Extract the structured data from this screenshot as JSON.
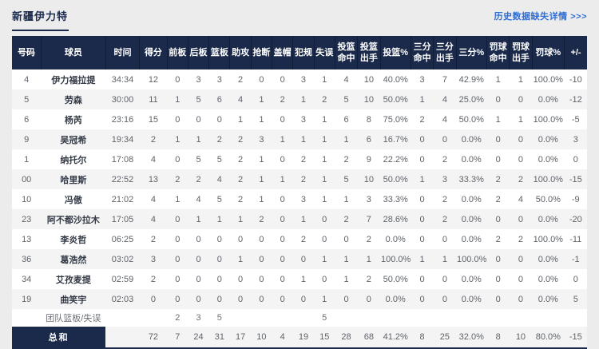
{
  "header": {
    "title": "新疆伊力特",
    "history_link": "历史数据缺失详情 >>>"
  },
  "colors": {
    "navy": "#1b2a4a",
    "link_blue": "#2e6ed5",
    "stripe": "#f4f4f5",
    "body_text": "#5f6368"
  },
  "table": {
    "columns": [
      {
        "id": "number",
        "label": "号码"
      },
      {
        "id": "player",
        "label": "球员"
      },
      {
        "id": "time",
        "label": "时间"
      },
      {
        "id": "points",
        "label": "得分"
      },
      {
        "id": "oreb",
        "label": "前板"
      },
      {
        "id": "dreb",
        "label": "后板"
      },
      {
        "id": "reb",
        "label": "篮板"
      },
      {
        "id": "ast",
        "label": "助攻"
      },
      {
        "id": "stl",
        "label": "抢断"
      },
      {
        "id": "blk",
        "label": "盖帽"
      },
      {
        "id": "fouls",
        "label": "犯规"
      },
      {
        "id": "tov",
        "label": "失误"
      },
      {
        "id": "fgm",
        "label": "投篮\n命中"
      },
      {
        "id": "fga",
        "label": "投篮\n出手"
      },
      {
        "id": "fgpct",
        "label": "投篮%"
      },
      {
        "id": "tpm",
        "label": "三分\n命中"
      },
      {
        "id": "tpa",
        "label": "三分\n出手"
      },
      {
        "id": "tppct",
        "label": "三分%"
      },
      {
        "id": "ftm",
        "label": "罚球\n命中"
      },
      {
        "id": "fta",
        "label": "罚球\n出手"
      },
      {
        "id": "ftpct",
        "label": "罚球%"
      },
      {
        "id": "plusminus",
        "label": "+/-"
      }
    ],
    "rows": [
      [
        "4",
        "伊力福拉提",
        "34:34",
        "12",
        "0",
        "3",
        "3",
        "2",
        "0",
        "0",
        "3",
        "1",
        "4",
        "10",
        "40.0%",
        "3",
        "7",
        "42.9%",
        "1",
        "1",
        "100.0%",
        "-10"
      ],
      [
        "5",
        "劳森",
        "30:00",
        "11",
        "1",
        "5",
        "6",
        "4",
        "1",
        "2",
        "1",
        "2",
        "5",
        "10",
        "50.0%",
        "1",
        "4",
        "25.0%",
        "0",
        "0",
        "0.0%",
        "-12"
      ],
      [
        "6",
        "杨芮",
        "23:16",
        "15",
        "0",
        "0",
        "0",
        "1",
        "1",
        "0",
        "3",
        "1",
        "6",
        "8",
        "75.0%",
        "2",
        "4",
        "50.0%",
        "1",
        "1",
        "100.0%",
        "-5"
      ],
      [
        "9",
        "吴冠希",
        "19:34",
        "2",
        "1",
        "1",
        "2",
        "2",
        "3",
        "1",
        "1",
        "1",
        "1",
        "6",
        "16.7%",
        "0",
        "0",
        "0.0%",
        "0",
        "0",
        "0.0%",
        "3"
      ],
      [
        "1",
        "纳托尔",
        "17:08",
        "4",
        "0",
        "5",
        "5",
        "2",
        "1",
        "0",
        "2",
        "1",
        "2",
        "9",
        "22.2%",
        "0",
        "2",
        "0.0%",
        "0",
        "0",
        "0.0%",
        "0"
      ],
      [
        "00",
        "哈里斯",
        "22:52",
        "13",
        "2",
        "2",
        "4",
        "2",
        "1",
        "1",
        "2",
        "1",
        "5",
        "10",
        "50.0%",
        "1",
        "3",
        "33.3%",
        "2",
        "2",
        "100.0%",
        "-15"
      ],
      [
        "10",
        "冯傲",
        "21:02",
        "4",
        "1",
        "4",
        "5",
        "2",
        "1",
        "0",
        "3",
        "1",
        "1",
        "3",
        "33.3%",
        "0",
        "2",
        "0.0%",
        "2",
        "4",
        "50.0%",
        "-9"
      ],
      [
        "23",
        "阿不都沙拉木",
        "17:05",
        "4",
        "0",
        "1",
        "1",
        "1",
        "2",
        "0",
        "1",
        "0",
        "2",
        "7",
        "28.6%",
        "0",
        "2",
        "0.0%",
        "0",
        "0",
        "0.0%",
        "-20"
      ],
      [
        "13",
        "李炎哲",
        "06:25",
        "2",
        "0",
        "0",
        "0",
        "0",
        "0",
        "0",
        "2",
        "0",
        "0",
        "2",
        "0.0%",
        "0",
        "0",
        "0.0%",
        "2",
        "2",
        "100.0%",
        "-11"
      ],
      [
        "36",
        "葛浩然",
        "03:02",
        "3",
        "0",
        "0",
        "0",
        "1",
        "0",
        "0",
        "0",
        "1",
        "1",
        "1",
        "100.0%",
        "1",
        "1",
        "100.0%",
        "0",
        "0",
        "0.0%",
        "-1"
      ],
      [
        "34",
        "艾孜麦提",
        "02:59",
        "2",
        "0",
        "0",
        "0",
        "0",
        "0",
        "0",
        "1",
        "0",
        "1",
        "2",
        "50.0%",
        "0",
        "0",
        "0.0%",
        "0",
        "0",
        "0.0%",
        "0"
      ],
      [
        "19",
        "曲笑宇",
        "02:03",
        "0",
        "0",
        "0",
        "0",
        "0",
        "0",
        "0",
        "0",
        "1",
        "0",
        "0",
        "0.0%",
        "0",
        "0",
        "0.0%",
        "0",
        "0",
        "0.0%",
        "5"
      ]
    ],
    "team_row": {
      "cells": [
        "",
        "团队篮板/失误",
        "",
        "",
        "2",
        "3",
        "5",
        "",
        "",
        "",
        "",
        "5",
        "",
        "",
        "",
        "",
        "",
        "",
        "",
        "",
        "",
        ""
      ]
    },
    "total_row": {
      "label": "总和",
      "cells": [
        "",
        "72",
        "7",
        "24",
        "31",
        "17",
        "10",
        "4",
        "19",
        "15",
        "28",
        "68",
        "41.2%",
        "8",
        "25",
        "32.0%",
        "8",
        "10",
        "80.0%",
        "-15"
      ]
    }
  }
}
